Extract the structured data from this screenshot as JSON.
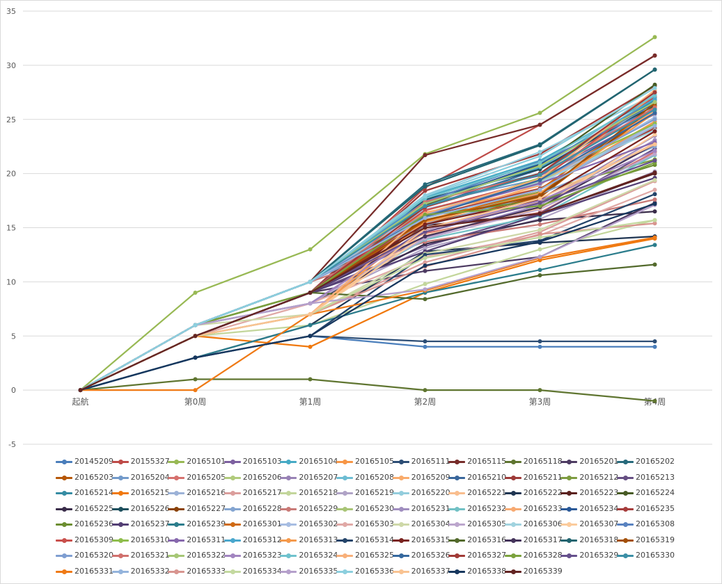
{
  "chart_data": {
    "type": "line",
    "title": "",
    "xlabel": "",
    "ylabel": "",
    "categories": [
      "起航",
      "第0周",
      "第1周",
      "第2周",
      "第3周",
      "第4周"
    ],
    "y_ticks": [
      "-5",
      "0",
      "5",
      "10",
      "15",
      "20",
      "25",
      "30",
      "35"
    ],
    "ylim": [
      -5,
      35
    ],
    "grid": "horizontal",
    "legend": "bottom",
    "series": [
      {
        "name": "20145209",
        "color": "#4a7ebb",
        "values": [
          0,
          3,
          5,
          4,
          4,
          4
        ]
      },
      {
        "name": "20155327",
        "color": "#be4b48",
        "values": [
          0,
          5,
          9,
          18.7,
          24.5,
          30.9
        ]
      },
      {
        "name": "20165101",
        "color": "#98b954",
        "values": [
          0,
          9,
          13,
          21.8,
          25.6,
          32.6
        ]
      },
      {
        "name": "20165103",
        "color": "#7d60a0",
        "values": [
          0,
          6,
          10,
          17.5,
          19.8,
          25.5
        ]
      },
      {
        "name": "20165104",
        "color": "#46aac5",
        "values": [
          0,
          6,
          10,
          17.8,
          21.2,
          27
        ]
      },
      {
        "name": "20165105",
        "color": "#f79646",
        "values": [
          0,
          5,
          9,
          16.4,
          18.6,
          24.8
        ]
      },
      {
        "name": "20165111",
        "color": "#2c4d75",
        "values": [
          0,
          3,
          5,
          4.5,
          4.5,
          4.5
        ]
      },
      {
        "name": "20165115",
        "color": "#772c2a",
        "values": [
          0,
          6,
          10,
          21.7,
          24.5,
          30.9
        ]
      },
      {
        "name": "20165118",
        "color": "#5f7530",
        "values": [
          0,
          1,
          1,
          0,
          0,
          -1
        ]
      },
      {
        "name": "20165201",
        "color": "#4d3b62",
        "values": [
          0,
          5,
          9,
          11,
          12.3,
          17.3
        ]
      },
      {
        "name": "20165202",
        "color": "#276a7c",
        "values": [
          0,
          6,
          10,
          19,
          22.7,
          29.6
        ]
      },
      {
        "name": "20165203",
        "color": "#b65708",
        "values": [
          0,
          5,
          9,
          15.4,
          17.8,
          26
        ]
      },
      {
        "name": "20165204",
        "color": "#729aca",
        "values": [
          0,
          6,
          10,
          17.2,
          19.5,
          26.6
        ]
      },
      {
        "name": "20165205",
        "color": "#d6716e",
        "values": [
          0,
          5,
          9,
          14.5,
          16.4,
          22
        ]
      },
      {
        "name": "20165206",
        "color": "#b1cb7c",
        "values": [
          0,
          6,
          10,
          16.2,
          19.3,
          24.2
        ]
      },
      {
        "name": "20165207",
        "color": "#9882b5",
        "values": [
          0,
          6,
          8,
          14.9,
          17.2,
          23.5
        ]
      },
      {
        "name": "20165208",
        "color": "#6dbdd3",
        "values": [
          0,
          6,
          10,
          17.6,
          20.5,
          27.5
        ]
      },
      {
        "name": "20165209",
        "color": "#f9ab6b",
        "values": [
          0,
          5,
          7,
          15.9,
          18.9,
          27.3
        ]
      },
      {
        "name": "20165210",
        "color": "#3a679c",
        "values": [
          0,
          6,
          10,
          16.9,
          20.4,
          26.6
        ]
      },
      {
        "name": "20165211",
        "color": "#9e3b39",
        "values": [
          0,
          5,
          9,
          18.4,
          21.8,
          28.1
        ]
      },
      {
        "name": "20165212",
        "color": "#7e9c40",
        "values": [
          0,
          6,
          9,
          15.7,
          18.3,
          21.3
        ]
      },
      {
        "name": "20165213",
        "color": "#664f83",
        "values": [
          0,
          5,
          9,
          13.3,
          16.3,
          22.3
        ]
      },
      {
        "name": "20165214",
        "color": "#358ca3",
        "values": [
          0,
          6,
          10,
          17.4,
          20,
          26.8
        ]
      },
      {
        "name": "20165215",
        "color": "#f0780c",
        "values": [
          0,
          5,
          4,
          9,
          12,
          14
        ]
      },
      {
        "name": "20165216",
        "color": "#9cb2d7",
        "values": [
          0,
          6,
          10,
          15.4,
          18.6,
          24.6
        ]
      },
      {
        "name": "20165217",
        "color": "#db9e9c",
        "values": [
          0,
          5,
          7,
          11.8,
          14.6,
          19.3
        ]
      },
      {
        "name": "20165218",
        "color": "#c3d69b",
        "values": [
          0,
          5,
          6,
          9.8,
          13,
          15.7
        ]
      },
      {
        "name": "20165219",
        "color": "#b0a3c6",
        "values": [
          0,
          6,
          8,
          13.1,
          15.8,
          20.2
        ]
      },
      {
        "name": "20165220",
        "color": "#93cddd",
        "values": [
          0,
          6,
          10,
          18,
          22,
          27.3
        ]
      },
      {
        "name": "20165221",
        "color": "#f9be8e",
        "values": [
          0,
          5,
          7,
          14.6,
          17.4,
          22.8
        ]
      },
      {
        "name": "20165222",
        "color": "#1f3552",
        "values": [
          0,
          3,
          6,
          12.8,
          13.6,
          14.2
        ]
      },
      {
        "name": "20165223",
        "color": "#5a211f",
        "values": [
          0,
          5,
          9,
          15.2,
          16.3,
          20
        ]
      },
      {
        "name": "20165224",
        "color": "#475b24",
        "values": [
          0,
          6,
          9,
          17.1,
          20.8,
          28.2
        ]
      },
      {
        "name": "20165225",
        "color": "#3a2d4a",
        "values": [
          0,
          6,
          8,
          13.5,
          15.7,
          16.5
        ]
      },
      {
        "name": "20165226",
        "color": "#1d4f5d",
        "values": [
          0,
          5,
          9,
          17.6,
          20.4,
          26.3
        ]
      },
      {
        "name": "20165227",
        "color": "#8a4207",
        "values": [
          0,
          6,
          10,
          15.7,
          17.9,
          26.2
        ]
      },
      {
        "name": "20165228",
        "color": "#84a5d1",
        "values": [
          0,
          6,
          10,
          15.2,
          18.1,
          22.5
        ]
      },
      {
        "name": "20165229",
        "color": "#c97a77",
        "values": [
          0,
          6,
          10,
          13.7,
          15.3,
          17.6
        ]
      },
      {
        "name": "20165230",
        "color": "#a9c577",
        "values": [
          0,
          6,
          10,
          16.6,
          19.2,
          25.1
        ]
      },
      {
        "name": "20165231",
        "color": "#a08ebf",
        "values": [
          0,
          6,
          9,
          14.1,
          17.1,
          23.1
        ]
      },
      {
        "name": "20165232",
        "color": "#72c1c5",
        "values": [
          0,
          6,
          8,
          13.9,
          16.1,
          21.7
        ]
      },
      {
        "name": "20165233",
        "color": "#f7aa72",
        "values": [
          0,
          5,
          7,
          15.6,
          19,
          25.8
        ]
      },
      {
        "name": "20165234",
        "color": "#2a5998",
        "values": [
          0,
          6,
          10,
          17.2,
          20.9,
          26.5
        ]
      },
      {
        "name": "20165235",
        "color": "#a63d3c",
        "values": [
          0,
          5,
          9,
          16,
          18.6,
          24.2
        ]
      },
      {
        "name": "20165236",
        "color": "#6c8e31",
        "values": [
          0,
          6,
          9,
          16.2,
          17.5,
          20.8
        ]
      },
      {
        "name": "20165237",
        "color": "#533f74",
        "values": [
          0,
          5,
          9,
          12.8,
          16.2,
          19.6
        ]
      },
      {
        "name": "20165239",
        "color": "#2c7d8c",
        "values": [
          0,
          3,
          6,
          9,
          11.1,
          13.4
        ]
      },
      {
        "name": "20165301",
        "color": "#cf6a12",
        "values": [
          0,
          5,
          9,
          15.6,
          18.5,
          26.2
        ]
      },
      {
        "name": "20165302",
        "color": "#a7bde2",
        "values": [
          0,
          6,
          10,
          16.7,
          19,
          25.2
        ]
      },
      {
        "name": "20165303",
        "color": "#e0a9a6",
        "values": [
          0,
          5,
          8,
          12.3,
          14.3,
          18.5
        ]
      },
      {
        "name": "20165304",
        "color": "#ced8a8",
        "values": [
          0,
          6,
          7,
          12.6,
          14.8,
          19.4
        ]
      },
      {
        "name": "20165305",
        "color": "#bca6cd",
        "values": [
          0,
          6,
          8,
          14,
          16.7,
          21.8
        ]
      },
      {
        "name": "20165306",
        "color": "#a1d3df",
        "values": [
          0,
          6,
          10,
          16.1,
          19.2,
          24
        ]
      },
      {
        "name": "20165307",
        "color": "#fbcb9c",
        "values": [
          0,
          5,
          7,
          14.3,
          16.8,
          23.6
        ]
      },
      {
        "name": "20165308",
        "color": "#5982c0",
        "values": [
          0,
          6,
          10,
          17.4,
          21.1,
          26
        ]
      },
      {
        "name": "20165309",
        "color": "#c9504c",
        "values": [
          0,
          5,
          9,
          16.6,
          19.4,
          27.1
        ]
      },
      {
        "name": "20165310",
        "color": "#8fbd4c",
        "values": [
          0,
          6,
          10,
          16.1,
          19.6,
          24.6
        ]
      },
      {
        "name": "20165311",
        "color": "#8768ad",
        "values": [
          0,
          6,
          10,
          16.2,
          19.1,
          22.9
        ]
      },
      {
        "name": "20165312",
        "color": "#4aa7cd",
        "values": [
          0,
          6,
          10,
          17.3,
          20.6,
          26.9
        ]
      },
      {
        "name": "20165313",
        "color": "#f59a4c",
        "values": [
          0,
          5,
          7,
          15.5,
          18.2,
          25.6
        ]
      },
      {
        "name": "20165314",
        "color": "#24446a",
        "values": [
          0,
          3,
          5,
          12.5,
          13.8,
          18.1
        ]
      },
      {
        "name": "20165315",
        "color": "#7a231f",
        "values": [
          0,
          5,
          9,
          15.3,
          17.6,
          23.9
        ]
      },
      {
        "name": "20165316",
        "color": "#536a2c",
        "values": [
          0,
          6,
          9,
          8.4,
          10.6,
          11.6
        ]
      },
      {
        "name": "20165317",
        "color": "#44335a",
        "values": [
          0,
          5,
          9,
          14.2,
          16.9,
          22.7
        ]
      },
      {
        "name": "20165318",
        "color": "#226570",
        "values": [
          0,
          6,
          10,
          18.8,
          22.6,
          29.6
        ]
      },
      {
        "name": "20165319",
        "color": "#a35006",
        "values": [
          0,
          5,
          9,
          15.7,
          18,
          26.5
        ]
      },
      {
        "name": "20165320",
        "color": "#7f9ed1",
        "values": [
          0,
          6,
          10,
          16.2,
          19.4,
          25
        ]
      },
      {
        "name": "20165321",
        "color": "#d0706d",
        "values": [
          0,
          5,
          9,
          17.4,
          19.9,
          26.1
        ]
      },
      {
        "name": "20165322",
        "color": "#a6c776",
        "values": [
          0,
          6,
          10,
          17.2,
          20.7,
          26.6
        ]
      },
      {
        "name": "20165323",
        "color": "#a285c0",
        "values": [
          0,
          6,
          8,
          14.8,
          17.5,
          22.1
        ]
      },
      {
        "name": "20165324",
        "color": "#6fc2cd",
        "values": [
          0,
          6,
          10,
          17.7,
          21,
          27.2
        ]
      },
      {
        "name": "20165325",
        "color": "#f8b07a",
        "values": [
          0,
          5,
          7,
          16.3,
          19.5,
          27.7
        ]
      },
      {
        "name": "20165326",
        "color": "#35689e",
        "values": [
          0,
          6,
          10,
          16,
          19.4,
          25.6
        ]
      },
      {
        "name": "20165327",
        "color": "#a13a36",
        "values": [
          0,
          5,
          9,
          16.9,
          20,
          27.5
        ]
      },
      {
        "name": "20165328",
        "color": "#7ba23d",
        "values": [
          0,
          6,
          9,
          16.2,
          17,
          21
        ]
      },
      {
        "name": "20165329",
        "color": "#65508c",
        "values": [
          0,
          5,
          9,
          14.6,
          17.3,
          21.2
        ]
      },
      {
        "name": "20165330",
        "color": "#3b8fa6",
        "values": [
          0,
          6,
          10,
          17,
          19.9,
          25.9
        ]
      },
      {
        "name": "20165331",
        "color": "#ef7a16",
        "values": [
          0,
          0,
          7,
          9.2,
          12.2,
          14.1
        ]
      },
      {
        "name": "20165332",
        "color": "#94b4dc",
        "values": [
          0,
          6,
          10,
          15.9,
          18.5,
          24.4
        ]
      },
      {
        "name": "20165333",
        "color": "#d8958f",
        "values": [
          0,
          5,
          7,
          11.4,
          14.4,
          15.4
        ]
      },
      {
        "name": "20165334",
        "color": "#c4d9a0",
        "values": [
          0,
          5,
          7,
          12.2,
          14.1,
          15.7
        ]
      },
      {
        "name": "20165335",
        "color": "#b5a0cb",
        "values": [
          0,
          6,
          8,
          9.3,
          12.3,
          17.1
        ]
      },
      {
        "name": "20165336",
        "color": "#8ccfde",
        "values": [
          0,
          6,
          10,
          17.9,
          21.6,
          27.9
        ]
      },
      {
        "name": "20165337",
        "color": "#f9c392",
        "values": [
          0,
          5,
          7,
          14.9,
          17.7,
          22.7
        ]
      },
      {
        "name": "20165338",
        "color": "#17375e",
        "values": [
          0,
          3,
          5,
          11.5,
          13.7,
          17.2
        ]
      },
      {
        "name": "20165339",
        "color": "#632523",
        "values": [
          0,
          5,
          9,
          15,
          16.3,
          20.1
        ]
      }
    ]
  }
}
